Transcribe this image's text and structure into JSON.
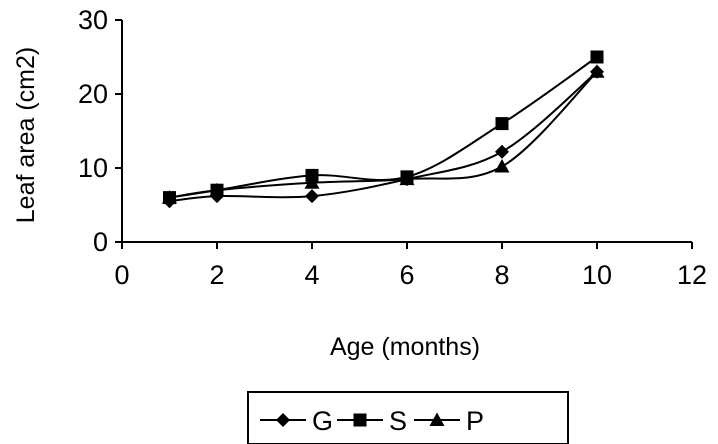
{
  "chart_data": {
    "type": "line",
    "xlabel": "Age (months)",
    "ylabel": "Leaf area (cm2)",
    "xlim": [
      0,
      12
    ],
    "ylim": [
      0,
      30
    ],
    "xticks": [
      0,
      2,
      4,
      6,
      8,
      10,
      12
    ],
    "yticks": [
      0,
      10,
      20,
      30
    ],
    "grid": false,
    "legend_position": "bottom",
    "series": [
      {
        "name": "G",
        "marker": "diamond",
        "x": [
          1,
          2,
          4,
          6,
          8,
          10
        ],
        "y": [
          5.5,
          6.2,
          6.2,
          8.5,
          12.2,
          23.0
        ]
      },
      {
        "name": "S",
        "marker": "square",
        "x": [
          1,
          2,
          4,
          6,
          8,
          10
        ],
        "y": [
          6.0,
          7.0,
          9.0,
          8.8,
          16.0,
          25.0
        ]
      },
      {
        "name": "P",
        "marker": "triangle",
        "x": [
          1,
          2,
          4,
          6,
          8,
          10
        ],
        "y": [
          6.0,
          7.0,
          8.0,
          8.5,
          10.2,
          23.0
        ]
      }
    ]
  }
}
